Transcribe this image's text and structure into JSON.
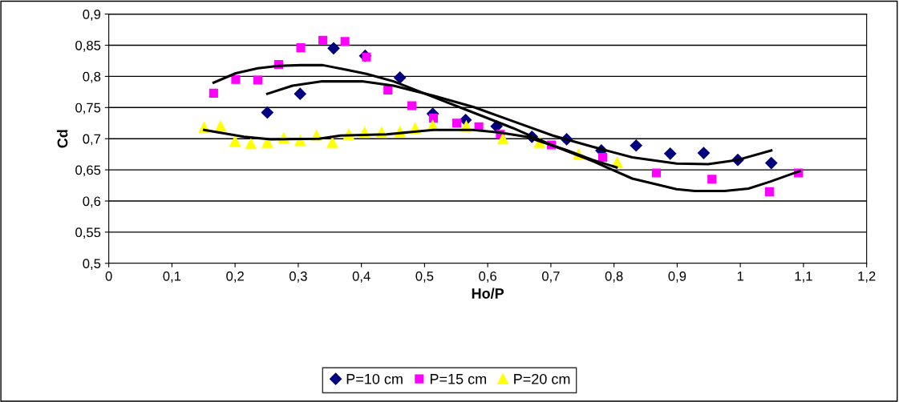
{
  "chart_data": {
    "type": "scatter",
    "xlabel": "Ho/P",
    "ylabel": "Cd",
    "xlim": [
      0,
      1.2
    ],
    "ylim": [
      0.5,
      0.9
    ],
    "xticks": [
      0,
      {
        "value": 0.1,
        "label": "0,1"
      },
      {
        "value": 0.2,
        "label": "0,2"
      },
      {
        "value": 0.3,
        "label": "0,3"
      },
      {
        "value": 0.4,
        "label": "0,4"
      },
      {
        "value": 0.5,
        "label": "0,5"
      },
      {
        "value": 0.6,
        "label": "0,6"
      },
      {
        "value": 0.7,
        "label": "0,7"
      },
      {
        "value": 0.8,
        "label": "0,8"
      },
      {
        "value": 0.9,
        "label": "0,9"
      },
      1,
      {
        "value": 1.1,
        "label": "1,1"
      },
      {
        "value": 1.2,
        "label": "1,2"
      }
    ],
    "yticks": [
      {
        "value": 0.5,
        "label": "0,5"
      },
      {
        "value": 0.55,
        "label": "0,55"
      },
      {
        "value": 0.6,
        "label": "0,6"
      },
      {
        "value": 0.65,
        "label": "0,65"
      },
      {
        "value": 0.7,
        "label": "0,7"
      },
      {
        "value": 0.75,
        "label": "0,75"
      },
      {
        "value": 0.8,
        "label": "0,8"
      },
      {
        "value": 0.85,
        "label": "0,85"
      },
      {
        "value": 0.9,
        "label": "0,9"
      }
    ],
    "grid": "y",
    "legend": "bottom",
    "series": [
      {
        "name": "P=10 cm",
        "marker": "diamond",
        "color": "#000080",
        "x": [
          0.251,
          0.303,
          0.356,
          0.406,
          0.461,
          0.513,
          0.565,
          0.614,
          0.67,
          0.725,
          0.78,
          0.835,
          0.889,
          0.942,
          0.996,
          1.049
        ],
        "values": [
          0.742,
          0.772,
          0.845,
          0.833,
          0.798,
          0.74,
          0.73,
          0.72,
          0.703,
          0.699,
          0.681,
          0.689,
          0.676,
          0.677,
          0.666,
          0.661
        ]
      },
      {
        "name": "P=15 cm",
        "marker": "square",
        "color": "#ff00ff",
        "x": [
          0.166,
          0.201,
          0.236,
          0.269,
          0.304,
          0.339,
          0.374,
          0.408,
          0.442,
          0.48,
          0.514,
          0.551,
          0.586,
          0.62,
          0.701,
          0.782,
          0.867,
          0.955,
          1.046,
          1.092
        ],
        "values": [
          0.773,
          0.795,
          0.794,
          0.819,
          0.846,
          0.858,
          0.856,
          0.831,
          0.778,
          0.753,
          0.733,
          0.725,
          0.719,
          0.707,
          0.69,
          0.67,
          0.645,
          0.635,
          0.615,
          0.645
        ]
      },
      {
        "name": "P=20 cm",
        "marker": "triangle",
        "color": "#ffff00",
        "x": [
          0.151,
          0.177,
          0.2,
          0.225,
          0.251,
          0.277,
          0.303,
          0.329,
          0.354,
          0.38,
          0.405,
          0.432,
          0.461,
          0.485,
          0.513,
          0.566,
          0.624,
          0.682,
          0.744,
          0.805
        ],
        "values": [
          0.718,
          0.72,
          0.696,
          0.692,
          0.694,
          0.701,
          0.697,
          0.705,
          0.694,
          0.707,
          0.71,
          0.71,
          0.711,
          0.717,
          0.721,
          0.72,
          0.7,
          0.694,
          0.675,
          0.662
        ]
      },
      {
        "type": "line",
        "marker": "none",
        "color": "#000000",
        "x": [
          0.251,
          0.291,
          0.338,
          0.401,
          0.451,
          0.514,
          0.577,
          0.64,
          0.703,
          0.766,
          0.829,
          0.899,
          0.949,
          0.996,
          1.049
        ],
        "values": [
          0.772,
          0.785,
          0.792,
          0.792,
          0.785,
          0.769,
          0.751,
          0.728,
          0.705,
          0.687,
          0.67,
          0.66,
          0.659,
          0.666,
          0.681
        ]
      },
      {
        "type": "line",
        "marker": "none",
        "color": "#000000",
        "x": [
          0.166,
          0.201,
          0.236,
          0.269,
          0.304,
          0.339,
          0.374,
          0.408,
          0.451,
          0.514,
          0.577,
          0.64,
          0.703,
          0.766,
          0.829,
          0.899,
          0.928,
          0.975,
          1.013,
          1.047,
          1.094
        ],
        "values": [
          0.79,
          0.805,
          0.813,
          0.817,
          0.818,
          0.818,
          0.811,
          0.804,
          0.792,
          0.767,
          0.742,
          0.717,
          0.689,
          0.664,
          0.636,
          0.619,
          0.616,
          0.616,
          0.62,
          0.631,
          0.648
        ]
      },
      {
        "type": "line",
        "marker": "none",
        "color": "#000000",
        "x": [
          0.151,
          0.214,
          0.257,
          0.333,
          0.367,
          0.44,
          0.514,
          0.577,
          0.619,
          0.661,
          0.724,
          0.766,
          0.804
        ],
        "values": [
          0.714,
          0.703,
          0.699,
          0.7,
          0.705,
          0.707,
          0.714,
          0.714,
          0.71,
          0.703,
          0.682,
          0.666,
          0.654
        ]
      }
    ]
  }
}
